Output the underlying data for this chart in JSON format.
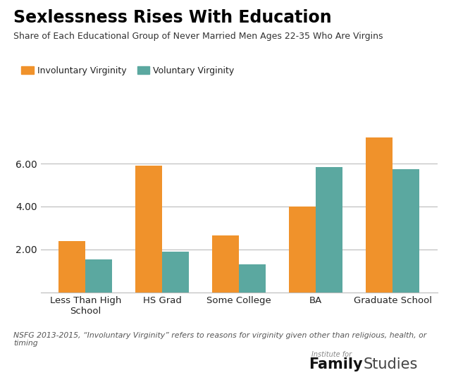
{
  "title": "Sexlessness Rises With Education",
  "subtitle": "Share of Each Educational Group of Never Married Men Ages 22-35 Who Are Virgins",
  "categories": [
    "Less Than High\nSchool",
    "HS Grad",
    "Some College",
    "BA",
    "Graduate School"
  ],
  "involuntary": [
    2.4,
    5.9,
    2.65,
    4.0,
    7.2
  ],
  "voluntary": [
    1.55,
    1.9,
    1.3,
    5.85,
    5.75
  ],
  "involuntary_color": "#F0922B",
  "voluntary_color": "#5BA8A0",
  "legend_labels": [
    "Involuntary Virginity",
    "Voluntary Virginity"
  ],
  "ylabel_ticks": [
    2.0,
    4.0,
    6.0
  ],
  "ylim": [
    0,
    8.2
  ],
  "footnote": "NSFG 2013-2015, “Involuntary Virginity” refers to reasons for virginity given other than religious, health, or\ntiming",
  "logo_text_small": "Institute for",
  "logo_text_large_bold": "Family",
  "logo_text_large_normal": "Studies",
  "bg_color": "#FFFFFF",
  "axis_color": "#BBBBBB",
  "text_color": "#222222"
}
